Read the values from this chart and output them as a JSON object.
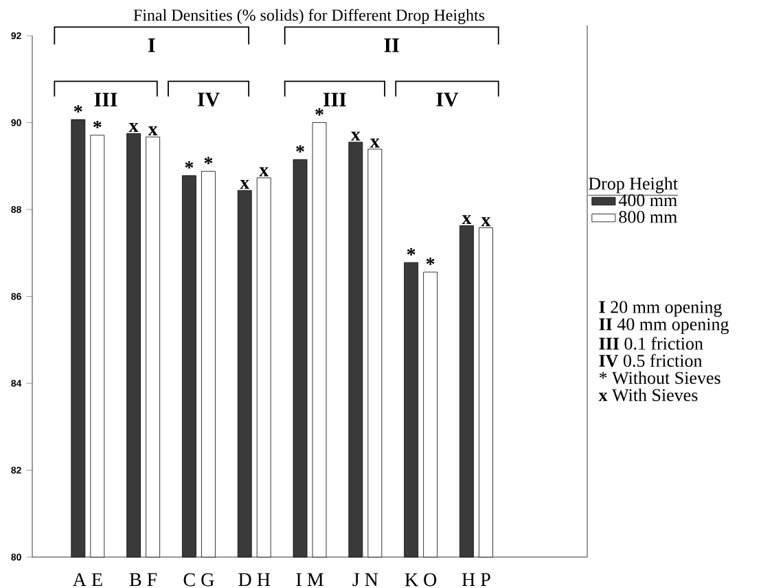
{
  "chart_data": {
    "type": "bar",
    "title": "Final Densities (% solids) for Different Drop Heights",
    "categories": [
      "A E",
      "B F",
      "C G",
      "D H",
      "I M",
      "J N",
      "K O",
      "H P"
    ],
    "series": [
      {
        "name": "400 mm",
        "color": "#3a3a3a",
        "values": [
          90.07,
          89.75,
          88.78,
          88.44,
          89.15,
          89.55,
          86.78,
          87.63
        ],
        "value_labels": [
          "*",
          "x",
          "*",
          "x",
          "*",
          "x",
          "*",
          "x"
        ]
      },
      {
        "name": "800 mm",
        "color": "#ffffff",
        "values": [
          89.71,
          89.67,
          88.88,
          88.73,
          90.0,
          89.39,
          86.56,
          87.58
        ],
        "value_labels": [
          "*",
          "x",
          "*",
          "x",
          "*",
          "x",
          "*",
          "x"
        ]
      }
    ],
    "legend_title": "Drop Height",
    "legend": "right",
    "ylim": [
      80,
      92
    ],
    "yticks": [
      80,
      82,
      84,
      86,
      88,
      90,
      92
    ],
    "annotations": [
      "I",
      "II",
      "III",
      "IV",
      "III",
      "IV",
      "**I**  20 mm opening",
      "**II**  40 mm opening",
      "**III** 0.1 friction",
      "**IV** 0.5 friction",
      "*  Without Sieves",
      "**x**  With Sieves"
    ]
  }
}
